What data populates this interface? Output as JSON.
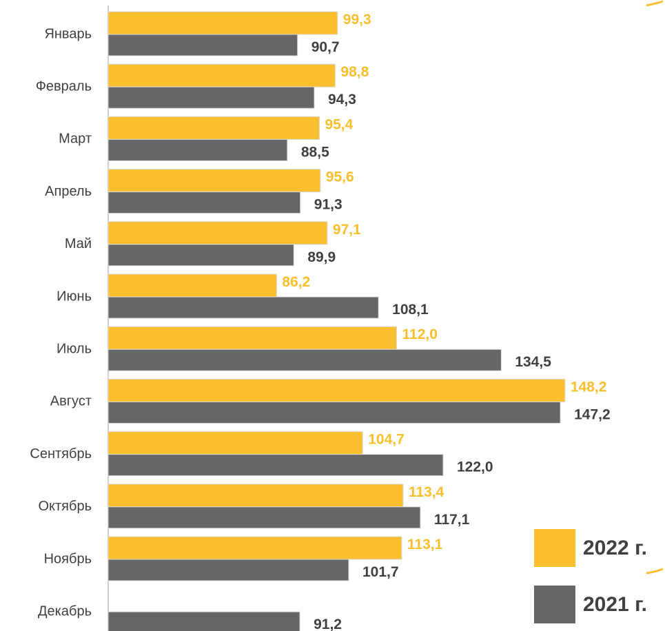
{
  "chart_data": {
    "type": "bar",
    "orientation": "horizontal",
    "categories": [
      "Январь",
      "Февраль",
      "Март",
      "Апрель",
      "Май",
      "Июнь",
      "Июль",
      "Август",
      "Сентябрь",
      "Октябрь",
      "Ноябрь",
      "Декабрь"
    ],
    "series": [
      {
        "name": "2022 г.",
        "color": "#fbbf2d",
        "label_color": "#fbbf2d",
        "values": [
          99.3,
          98.8,
          95.4,
          95.6,
          97.1,
          86.2,
          112.0,
          148.2,
          104.7,
          113.4,
          113.1,
          null
        ],
        "value_labels": [
          "99,3",
          "98,8",
          "95,4",
          "95,6",
          "97,1",
          "86,2",
          "112,0",
          "148,2",
          "104,7",
          "113,4",
          "113,1",
          null
        ]
      },
      {
        "name": "2021 г.",
        "color": "#666666",
        "label_color": "#404040",
        "values": [
          90.7,
          94.3,
          88.5,
          91.3,
          89.9,
          108.1,
          134.5,
          147.2,
          122.0,
          117.1,
          101.7,
          91.2
        ],
        "value_labels": [
          "90,7",
          "94,3",
          "88,5",
          "91,3",
          "89,9",
          "108,1",
          "134,5",
          "147,2",
          "122,0",
          "117,1",
          "101,7",
          "91,2"
        ]
      }
    ],
    "xlim": [
      50,
      160
    ]
  }
}
